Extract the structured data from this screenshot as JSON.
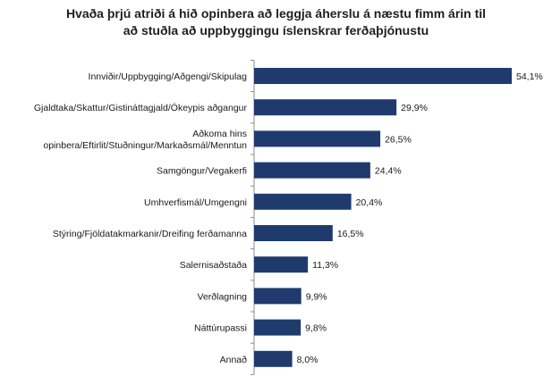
{
  "chart_data": {
    "type": "bar",
    "orientation": "horizontal",
    "title_lines": [
      "Hvaða þrjú atriði á hið opinbera að leggja áherslu  á næstu fimm árin til",
      "að stuðla að uppbyggingu íslenskrar ferðaþjónustu"
    ],
    "categories": [
      [
        "Innviðir/Uppbygging/Aðgengi/Skipulag"
      ],
      [
        "Gjaldtaka/Skattur/Gistináttagjald/Ókeypis aðgangur"
      ],
      [
        "Aðkoma hins",
        "opinbera/Eftirlit/Stuðningur/Markaðsmál/Menntun"
      ],
      [
        "Samgöngur/Vegakerfi"
      ],
      [
        "Umhverfismál/Umgengni"
      ],
      [
        "Stýring/Fjöldatakmarkanir/Dreifing ferðamanna"
      ],
      [
        "Salernisaðstaða"
      ],
      [
        "Verðlagning"
      ],
      [
        "Náttúrupassi"
      ],
      [
        "Annað"
      ]
    ],
    "values": [
      54.1,
      29.9,
      26.5,
      24.4,
      20.4,
      16.5,
      11.3,
      9.9,
      9.8,
      8.0
    ],
    "value_labels": [
      "54,1%",
      "29,9%",
      "26,5%",
      "24,4%",
      "20,4%",
      "16,5%",
      "11,3%",
      "9,9%",
      "9,8%",
      "8,0%"
    ],
    "xlim": [
      0,
      60
    ],
    "grid": false,
    "bar_color": "#1f3b6e",
    "axis_color": "#8c8c8c"
  }
}
